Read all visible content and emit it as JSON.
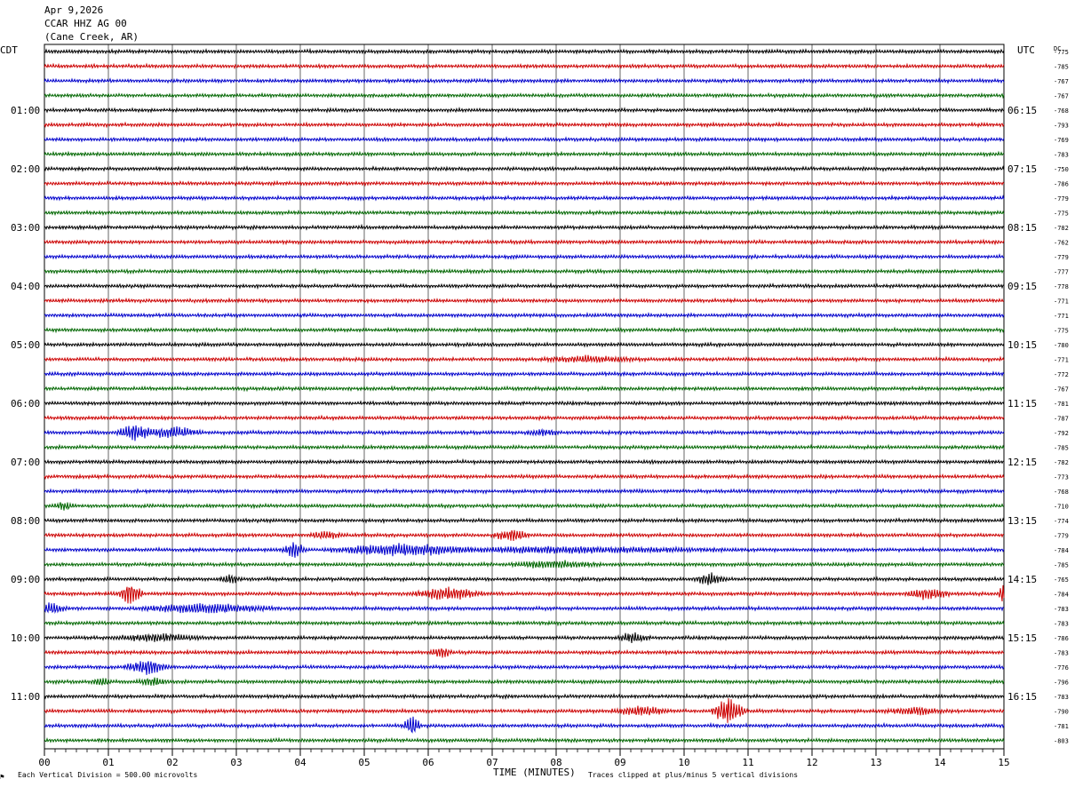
{
  "header": {
    "date": "Apr 9,2026",
    "station": "CCAR HHZ AG 00",
    "location": "(Cane Creek, AR)"
  },
  "left_timezone": "CDT",
  "right_timezone": "UTC",
  "dc_header": "DC",
  "footer": {
    "scale_note": "Each Vertical Division =  500.00 microvolts",
    "clip_note": "Traces clipped at plus/minus 5 vertical divisions",
    "corner_mark": "⚑"
  },
  "colors": {
    "trace_cycle": [
      "#000000",
      "#cc0000",
      "#0000cc",
      "#006600"
    ],
    "grid": "#000000"
  },
  "chart_data": {
    "type": "line",
    "title": "",
    "xlabel": "TIME (MINUTES)",
    "ylabel": "",
    "xlim": [
      0,
      15
    ],
    "x_ticks": [
      "00",
      "01",
      "02",
      "03",
      "04",
      "05",
      "06",
      "07",
      "08",
      "09",
      "10",
      "11",
      "12",
      "13",
      "14",
      "15"
    ],
    "trace_count": 48,
    "left_hour_labels": [
      "01:00",
      "02:00",
      "03:00",
      "04:00",
      "05:00",
      "06:00",
      "07:00",
      "08:00",
      "09:00",
      "10:00",
      "11:00"
    ],
    "right_hour_labels": [
      "06:15",
      "07:15",
      "08:15",
      "09:15",
      "10:15",
      "11:15",
      "12:15",
      "13:15",
      "14:15",
      "15:15",
      "16:15"
    ],
    "dc_offsets": [
      -775,
      -785,
      -767,
      -767,
      -768,
      -793,
      -769,
      -783,
      -750,
      -786,
      -779,
      -775,
      -782,
      -762,
      -779,
      -777,
      -778,
      -771,
      -771,
      -775,
      -780,
      -771,
      -772,
      -767,
      -781,
      -787,
      -792,
      -785,
      -782,
      -773,
      -768,
      -710,
      -774,
      -779,
      -784,
      -785,
      -765,
      -784,
      -783,
      -783,
      -786,
      -783,
      -776,
      -796,
      -783,
      -790,
      -781,
      -803
    ],
    "events": [
      {
        "trace": 21,
        "minute": 8.5,
        "width": 0.9,
        "amp": 3
      },
      {
        "trace": 26,
        "minute": 1.4,
        "width": 0.3,
        "amp": 10
      },
      {
        "trace": 26,
        "minute": 2.0,
        "width": 0.5,
        "amp": 6
      },
      {
        "trace": 26,
        "minute": 7.8,
        "width": 0.3,
        "amp": 3
      },
      {
        "trace": 33,
        "minute": 4.4,
        "width": 0.3,
        "amp": 4
      },
      {
        "trace": 33,
        "minute": 7.3,
        "width": 0.3,
        "amp": 7
      },
      {
        "trace": 34,
        "minute": 3.9,
        "width": 0.2,
        "amp": 9
      },
      {
        "trace": 34,
        "minute": 5.5,
        "width": 1.2,
        "amp": 6
      },
      {
        "trace": 34,
        "minute": 8.0,
        "width": 3.0,
        "amp": 3
      },
      {
        "trace": 35,
        "minute": 8.0,
        "width": 0.8,
        "amp": 4
      },
      {
        "trace": 36,
        "minute": 10.4,
        "width": 0.3,
        "amp": 6
      },
      {
        "trace": 36,
        "minute": 2.9,
        "width": 0.2,
        "amp": 4
      },
      {
        "trace": 37,
        "minute": 1.35,
        "width": 0.2,
        "amp": 16
      },
      {
        "trace": 37,
        "minute": 6.3,
        "width": 0.6,
        "amp": 7
      },
      {
        "trace": 37,
        "minute": 13.8,
        "width": 0.4,
        "amp": 6
      },
      {
        "trace": 37,
        "minute": 15.0,
        "width": 0.1,
        "amp": 12
      },
      {
        "trace": 38,
        "minute": 0.1,
        "width": 0.3,
        "amp": 6
      },
      {
        "trace": 38,
        "minute": 2.5,
        "width": 1.2,
        "amp": 5
      },
      {
        "trace": 40,
        "minute": 1.8,
        "width": 0.8,
        "amp": 4
      },
      {
        "trace": 40,
        "minute": 9.2,
        "width": 0.3,
        "amp": 5
      },
      {
        "trace": 41,
        "minute": 6.2,
        "width": 0.2,
        "amp": 5
      },
      {
        "trace": 42,
        "minute": 1.6,
        "width": 0.4,
        "amp": 8
      },
      {
        "trace": 43,
        "minute": 0.9,
        "width": 0.2,
        "amp": 4
      },
      {
        "trace": 43,
        "minute": 1.7,
        "width": 0.3,
        "amp": 4
      },
      {
        "trace": 45,
        "minute": 10.7,
        "width": 0.3,
        "amp": 16
      },
      {
        "trace": 45,
        "minute": 9.3,
        "width": 0.5,
        "amp": 5
      },
      {
        "trace": 45,
        "minute": 13.6,
        "width": 0.5,
        "amp": 4
      },
      {
        "trace": 46,
        "minute": 5.75,
        "width": 0.15,
        "amp": 12
      },
      {
        "trace": 31,
        "minute": 0.3,
        "width": 0.2,
        "amp": 4
      }
    ]
  }
}
